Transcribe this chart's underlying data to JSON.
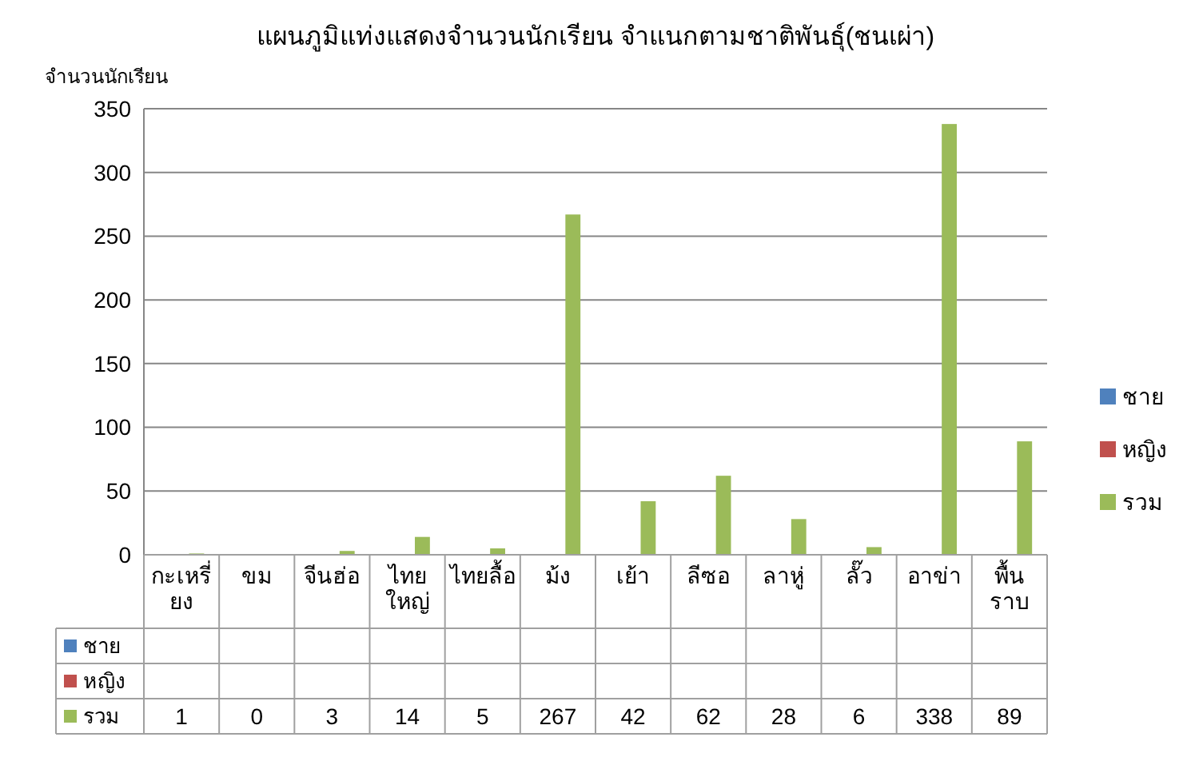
{
  "chart_data": {
    "type": "bar",
    "title": "แผนภูมิแท่งแสดงจำนวนนักเรียน จำแนกตามชาติพันธุ์(ชนเผ่า)",
    "ylabel": "จำนวนนักเรียน",
    "categories": [
      "กะเหรี่ยง",
      "ขม",
      "จีนฮ่อ",
      "ไทยใหญ่",
      "ไทยลื้อ",
      "ม้ง",
      "เย้า",
      "ลีซอ",
      "ลาหู่",
      "ลั๊ว",
      "อาข่า",
      "พื้นราบ"
    ],
    "series": [
      {
        "name": "ชาย",
        "color": "#4f81bd",
        "values": [
          null,
          null,
          null,
          null,
          null,
          null,
          null,
          null,
          null,
          null,
          null,
          null
        ]
      },
      {
        "name": "หญิง",
        "color": "#c0504d",
        "values": [
          null,
          null,
          null,
          null,
          null,
          null,
          null,
          null,
          null,
          null,
          null,
          null
        ]
      },
      {
        "name": "รวม",
        "color": "#9bbb59",
        "values": [
          1,
          0,
          3,
          14,
          5,
          267,
          42,
          62,
          28,
          6,
          338,
          89
        ]
      }
    ],
    "ylim": [
      0,
      350
    ],
    "yticks": [
      0,
      50,
      100,
      150,
      200,
      250,
      300,
      350
    ],
    "grid": "y",
    "legend": "right",
    "data_labels": true
  }
}
